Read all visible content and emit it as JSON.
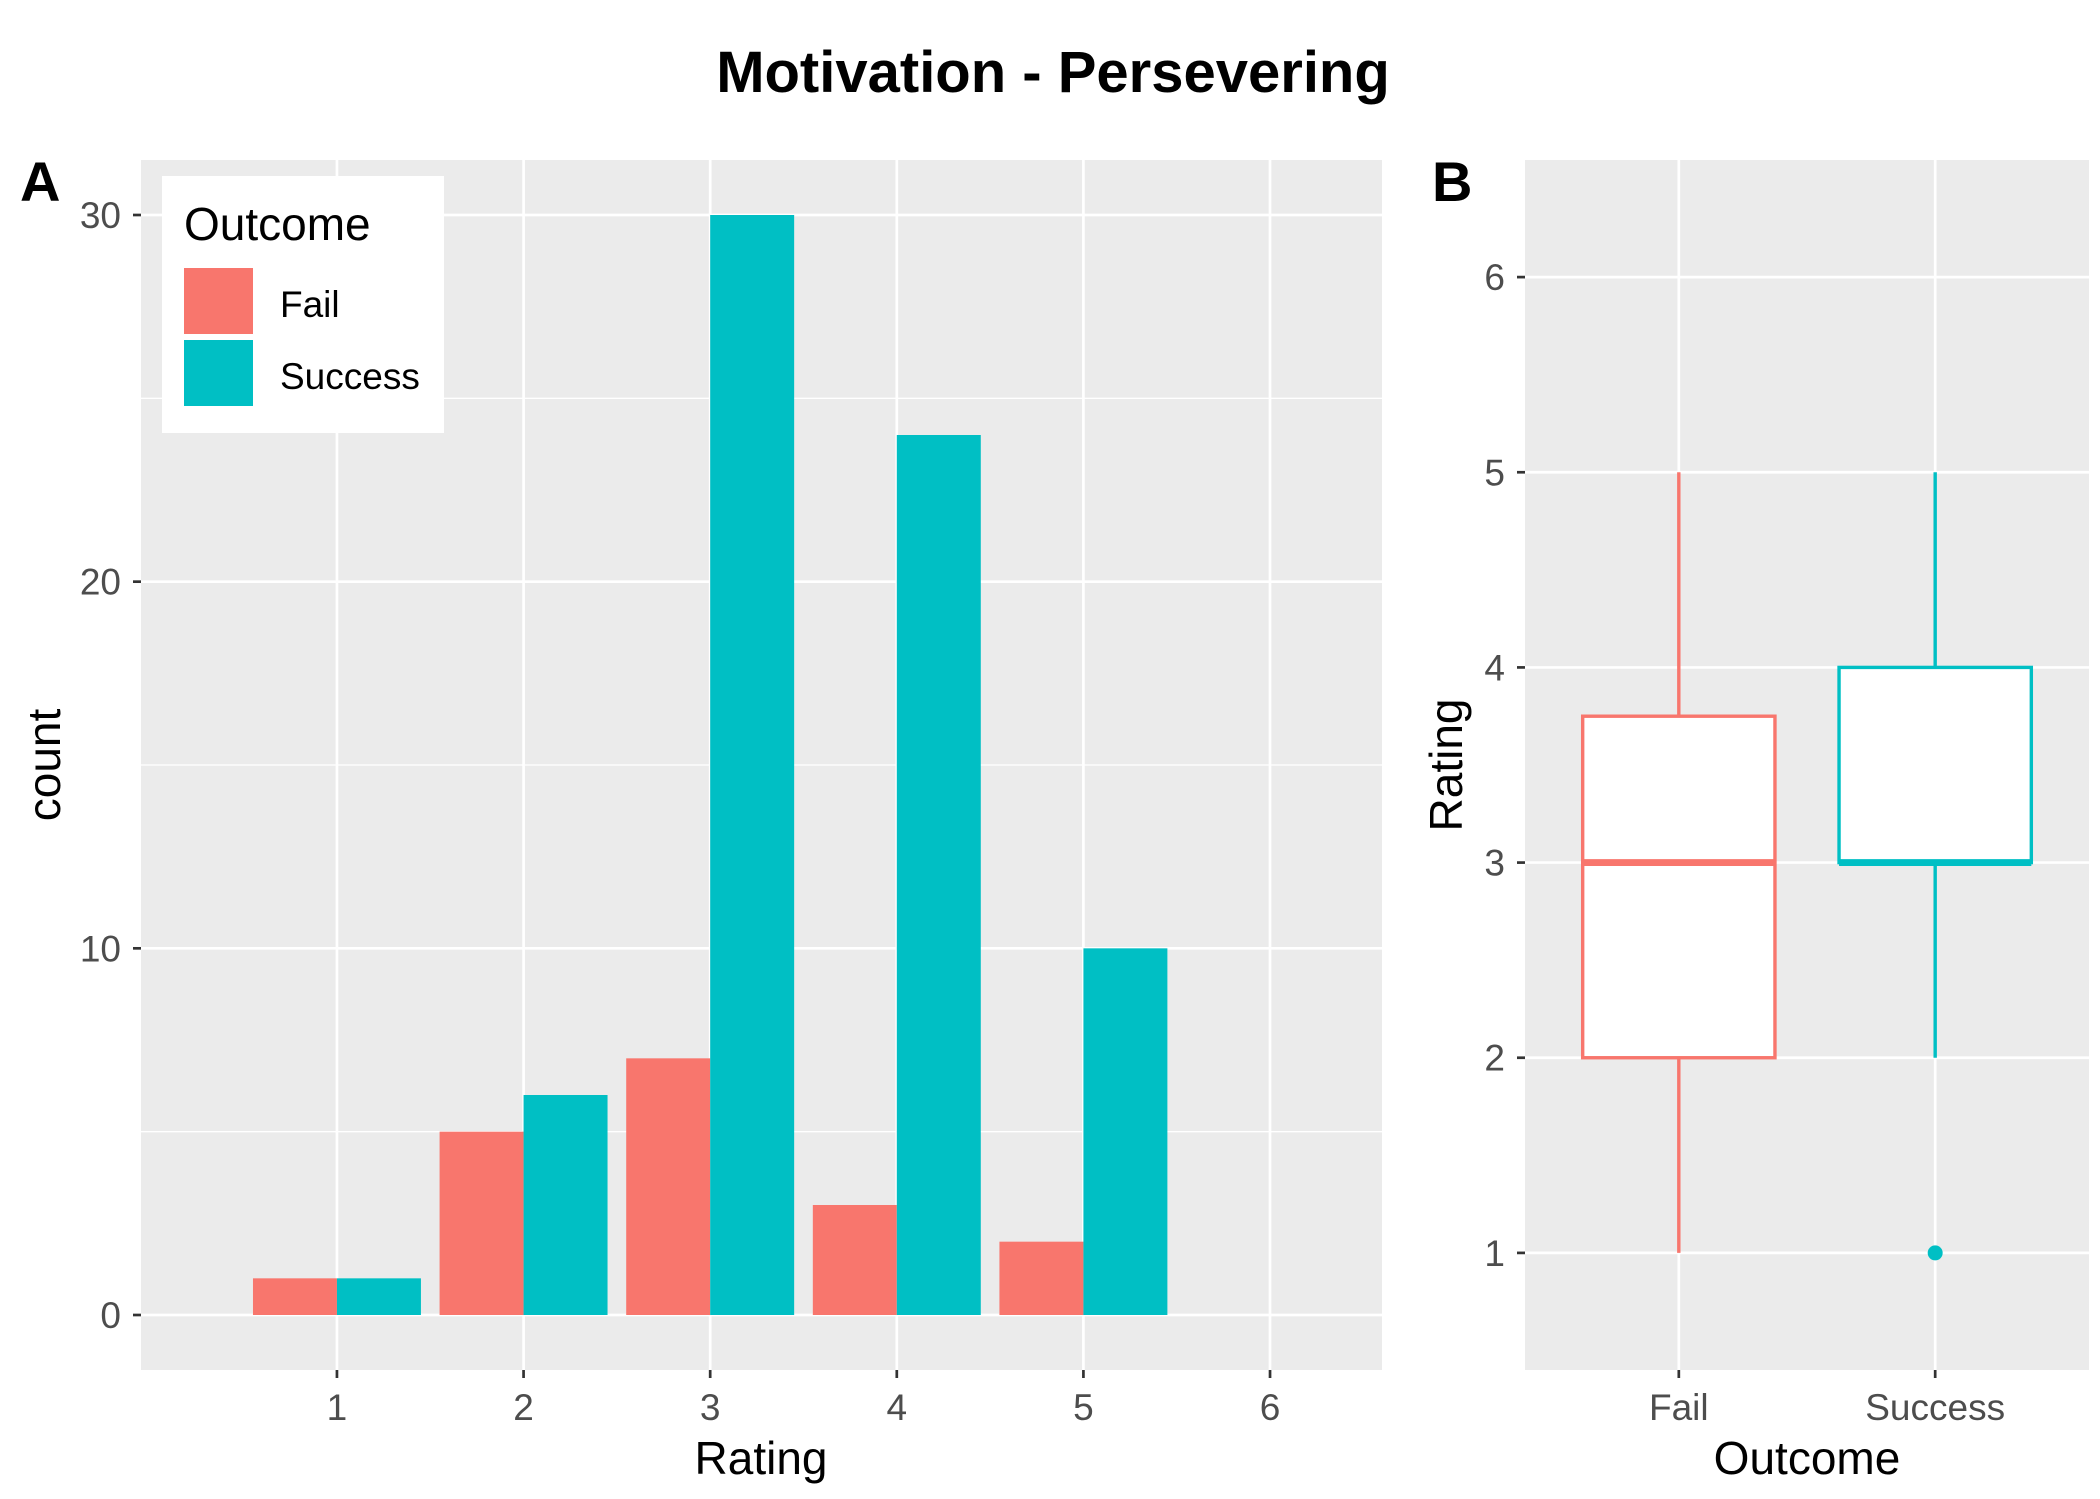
{
  "title": "Motivation - Persevering",
  "colors": {
    "panel_background": "#EBEBEB",
    "grid": "#FFFFFF"
  },
  "chart_data": [
    {
      "panel_label": "A",
      "type": "bar",
      "x": [
        1,
        2,
        3,
        4,
        5
      ],
      "series": [
        {
          "name": "Fail",
          "values": [
            1,
            5,
            7,
            3,
            2
          ],
          "color": "#F8766D"
        },
        {
          "name": "Success",
          "values": [
            1,
            6,
            30,
            24,
            10
          ],
          "color": "#00BFC4"
        }
      ],
      "xlabel": "Rating",
      "ylabel": "count",
      "xticks": [
        1,
        2,
        3,
        4,
        5,
        6
      ],
      "yticks": [
        0,
        10,
        20,
        30
      ],
      "xlim": [
        -0.05,
        6.6
      ],
      "ylim": [
        -1.5,
        31.5
      ],
      "grid": true,
      "legend": {
        "title": "Outcome",
        "position": "top-left"
      }
    },
    {
      "panel_label": "B",
      "type": "boxplot",
      "categories": [
        "Fail",
        "Success"
      ],
      "boxes": [
        {
          "min": 1,
          "q1": 2,
          "median": 3,
          "q3": 3.75,
          "max": 5,
          "outliers": [],
          "color": "#F8766D"
        },
        {
          "min": 2,
          "q1": 3,
          "median": 3,
          "q3": 4,
          "max": 5,
          "outliers": [
            1
          ],
          "color": "#00BFC4"
        }
      ],
      "xlabel": "Outcome",
      "ylabel": "Rating",
      "yticks": [
        1,
        2,
        3,
        4,
        5,
        6
      ],
      "ylim": [
        0.4,
        6.6
      ],
      "grid": true
    }
  ]
}
